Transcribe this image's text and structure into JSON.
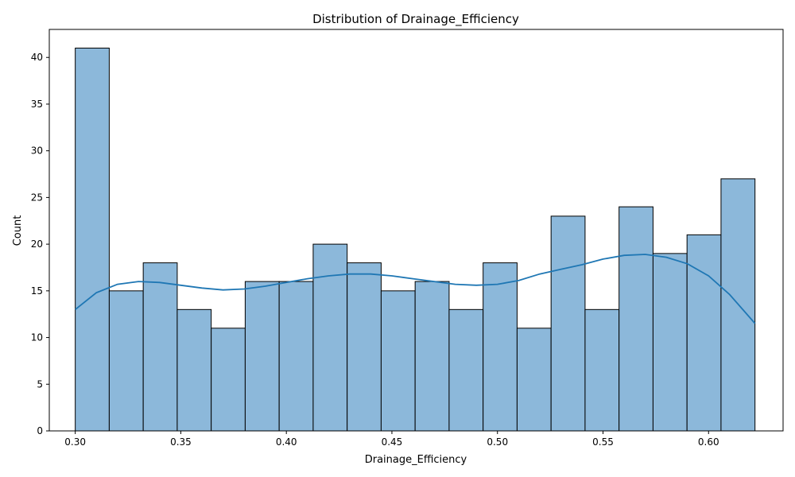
{
  "chart_data": {
    "type": "bar",
    "title": "Distribution of Drainage_Efficiency",
    "xlabel": "Drainage_Efficiency",
    "ylabel": "Count",
    "xlim": [
      0.2877,
      0.6353
    ],
    "ylim": [
      0,
      43
    ],
    "bin_edges": [
      0.3,
      0.3161,
      0.3322,
      0.3483,
      0.3644,
      0.3805,
      0.3966,
      0.4127,
      0.4288,
      0.4449,
      0.461,
      0.4771,
      0.4932,
      0.5093,
      0.5254,
      0.5415,
      0.5576,
      0.5737,
      0.5898,
      0.6059,
      0.622
    ],
    "values": [
      41,
      15,
      18,
      13,
      11,
      16,
      16,
      20,
      18,
      15,
      16,
      13,
      18,
      11,
      23,
      13,
      24,
      19,
      21,
      27
    ],
    "kde": {
      "x": [
        0.3,
        0.31,
        0.32,
        0.33,
        0.34,
        0.35,
        0.36,
        0.37,
        0.38,
        0.39,
        0.4,
        0.41,
        0.42,
        0.43,
        0.44,
        0.45,
        0.46,
        0.47,
        0.48,
        0.49,
        0.5,
        0.51,
        0.52,
        0.53,
        0.54,
        0.55,
        0.56,
        0.57,
        0.58,
        0.59,
        0.6,
        0.61,
        0.622
      ],
      "y": [
        13.0,
        14.8,
        15.7,
        16.0,
        15.9,
        15.6,
        15.3,
        15.1,
        15.2,
        15.5,
        15.9,
        16.3,
        16.6,
        16.8,
        16.8,
        16.6,
        16.3,
        16.0,
        15.7,
        15.6,
        15.7,
        16.1,
        16.8,
        17.3,
        17.8,
        18.4,
        18.8,
        18.9,
        18.6,
        17.9,
        16.6,
        14.6,
        11.5
      ]
    },
    "xticks": [
      0.3,
      0.35,
      0.4,
      0.45,
      0.5,
      0.55,
      0.6
    ],
    "xtick_labels": [
      "0.30",
      "0.35",
      "0.40",
      "0.45",
      "0.50",
      "0.55",
      "0.60"
    ],
    "yticks": [
      0,
      5,
      10,
      15,
      20,
      25,
      30,
      35,
      40
    ],
    "ytick_labels": [
      "0",
      "5",
      "10",
      "15",
      "20",
      "25",
      "30",
      "35",
      "40"
    ],
    "grid": false,
    "colors": {
      "bar_fill": "#8cb8da",
      "bar_edge": "#000000",
      "kde_line": "#1f77b4"
    }
  }
}
